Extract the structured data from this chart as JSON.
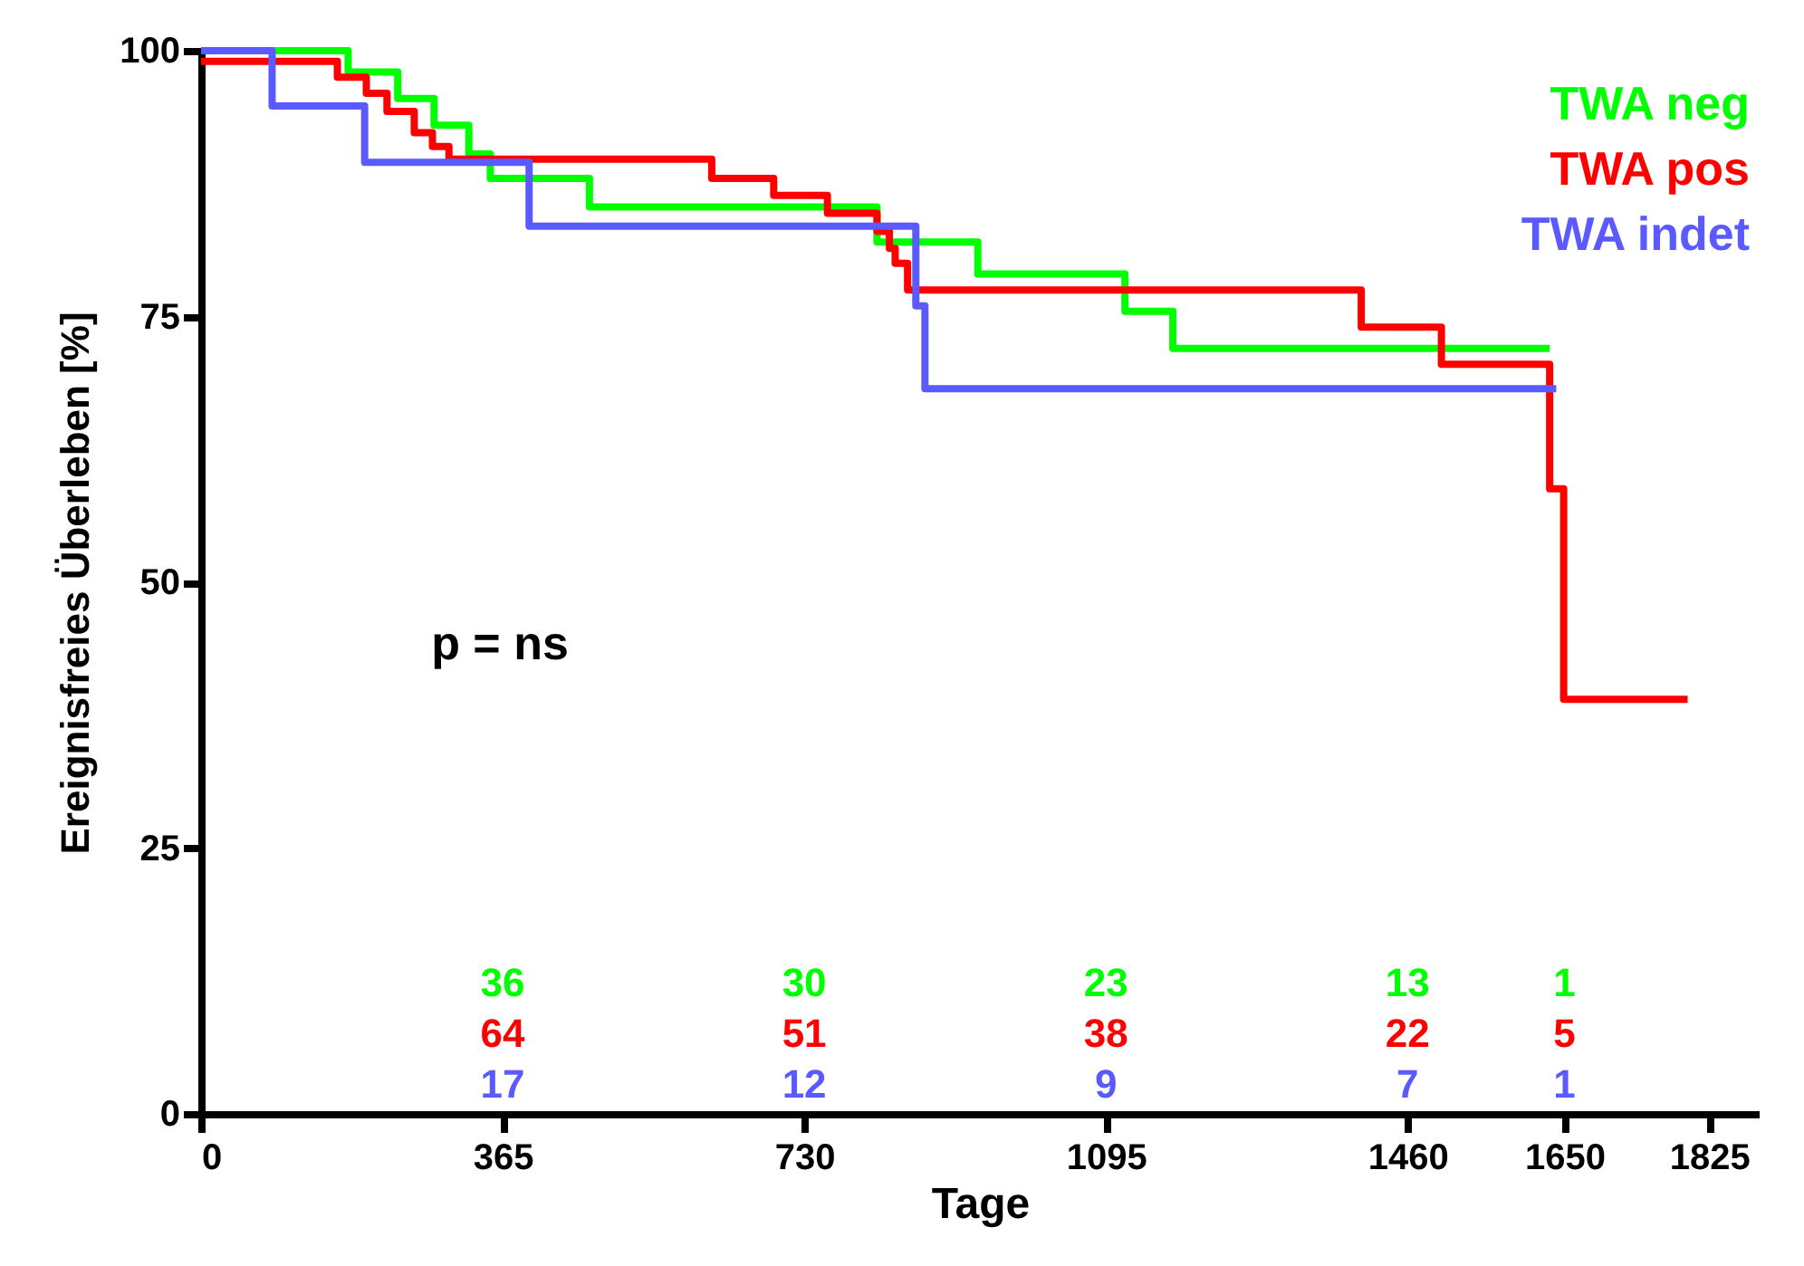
{
  "chart_data": {
    "type": "step",
    "xlabel": "Tage",
    "ylabel": "Ereignisfreies Überleben [%]",
    "xlim": [
      0,
      1885
    ],
    "xticks": [
      0,
      365,
      730,
      1095,
      1460,
      1650,
      1825
    ],
    "ylim": [
      0,
      100
    ],
    "yticks": [
      0,
      25,
      50,
      75,
      100
    ],
    "grid": false,
    "legend": "top right",
    "marker": "none",
    "line_style": "solid",
    "series": [
      {
        "name": "TWA neg",
        "color": "#00ff00",
        "x": [
          0,
          178,
          238,
          282,
          324,
          350,
          470,
          818,
          940,
          1118,
          1176,
          1632
        ],
        "values": [
          100,
          98,
          95.5,
          93,
          90.3,
          88,
          85.3,
          82,
          79,
          75.5,
          72,
          72
        ]
      },
      {
        "name": "TWA pos",
        "color": "#ff0000",
        "x": [
          0,
          165,
          200,
          225,
          258,
          280,
          300,
          618,
          693,
          758,
          818,
          833,
          840,
          855,
          1404,
          1501,
          1632,
          1649,
          1799
        ],
        "values": [
          99,
          97.5,
          96,
          94.3,
          92.3,
          91,
          89.8,
          88,
          86.4,
          84.7,
          83,
          81.4,
          80,
          77.5,
          74,
          70.5,
          58.8,
          39,
          39
        ]
      },
      {
        "name": "TWA indet",
        "color": "#5a5aff",
        "x": [
          0,
          86,
          198,
          397,
          865,
          876,
          1640
        ],
        "values": [
          100,
          94.8,
          89.5,
          83.5,
          76,
          68.2,
          68.2
        ]
      }
    ],
    "annotations": [
      "p = ns",
      "36",
      "64",
      "17",
      "30",
      "51",
      "12",
      "23",
      "38",
      "9",
      "13",
      "22",
      "7",
      "1",
      "5",
      "1"
    ]
  }
}
